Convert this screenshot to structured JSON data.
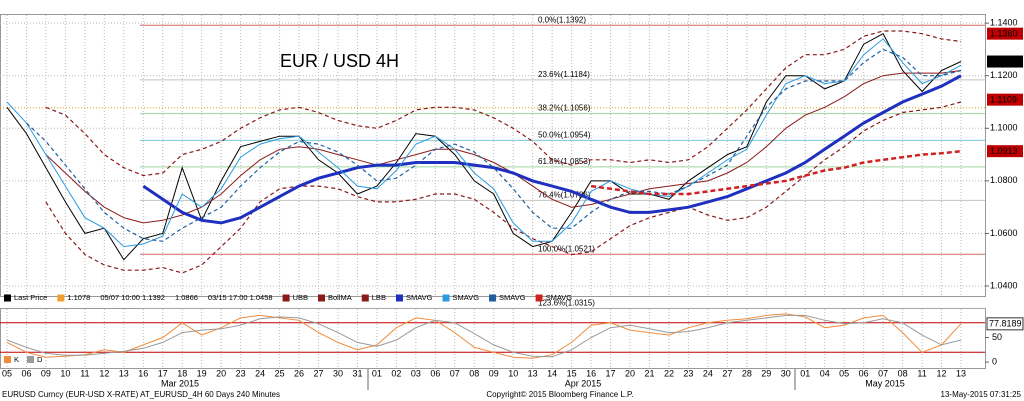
{
  "chart_data": [
    {
      "type": "line",
      "title": "EUR / USD 4H",
      "title_color": "#c00000",
      "categories": [
        "05",
        "06",
        "09",
        "10",
        "11",
        "12",
        "13",
        "16",
        "17",
        "18",
        "19",
        "20",
        "23",
        "24",
        "25",
        "26",
        "27",
        "30",
        "31",
        "01",
        "02",
        "03",
        "06",
        "07",
        "08",
        "09",
        "10",
        "13",
        "14",
        "15",
        "16",
        "17",
        "20",
        "21",
        "22",
        "23",
        "24",
        "27",
        "28",
        "29",
        "30",
        "01",
        "04",
        "05",
        "06",
        "07",
        "08",
        "11",
        "12",
        "13"
      ],
      "month_labels": [
        "Mar 2015",
        "Apr 2015",
        "May 2015"
      ],
      "ylim": [
        1.0362,
        1.1431
      ],
      "yticks": [
        {
          "value": 1.04,
          "label": "1.0400"
        },
        {
          "value": 1.06,
          "label": "1.0600"
        },
        {
          "value": 1.08,
          "label": "1.0800"
        },
        {
          "value": 1.1,
          "label": "1.1000"
        },
        {
          "value": 1.12,
          "label": "1.1200"
        },
        {
          "value": 1.14,
          "label": "1.1400"
        }
      ],
      "grid": true,
      "reference_line": 1.1078,
      "legend_info": [
        "1.1078",
        "05/07 10:00 1.1392",
        "1.0866",
        "03/15 17:00 1.0458"
      ],
      "series": [
        {
          "name": "Last Price",
          "color": "#000000",
          "style": "solid",
          "values": [
            1.108,
            1.098,
            1.085,
            1.072,
            1.06,
            1.062,
            1.05,
            1.058,
            1.06,
            1.085,
            1.065,
            1.08,
            1.093,
            1.095,
            1.097,
            1.097,
            1.088,
            1.083,
            1.075,
            1.078,
            1.087,
            1.098,
            1.097,
            1.09,
            1.08,
            1.075,
            1.06,
            1.055,
            1.057,
            1.068,
            1.08,
            1.08,
            1.075,
            1.075,
            1.073,
            1.08,
            1.085,
            1.09,
            1.093,
            1.11,
            1.12,
            1.12,
            1.115,
            1.118,
            1.132,
            1.136,
            1.122,
            1.114,
            1.122,
            1.1254
          ]
        },
        {
          "name": "UBB",
          "color": "#8b1a1a",
          "style": "dashed",
          "values": [
            null,
            null,
            1.108,
            1.105,
            1.098,
            1.09,
            1.085,
            1.082,
            1.083,
            1.09,
            1.092,
            1.095,
            1.1,
            1.104,
            1.107,
            1.108,
            1.106,
            1.103,
            1.101,
            1.1,
            1.103,
            1.107,
            1.108,
            1.108,
            1.107,
            1.104,
            1.1,
            1.095,
            1.088,
            1.086,
            1.088,
            1.088,
            1.087,
            1.088,
            1.087,
            1.088,
            1.093,
            1.1,
            1.107,
            1.115,
            1.123,
            1.128,
            1.128,
            1.13,
            1.135,
            1.137,
            1.137,
            1.136,
            1.134,
            1.133
          ]
        },
        {
          "name": "BollMA",
          "color": "#8b1a1a",
          "style": "solid",
          "values": [
            null,
            null,
            1.09,
            1.083,
            1.076,
            1.07,
            1.066,
            1.064,
            1.065,
            1.067,
            1.07,
            1.075,
            1.082,
            1.088,
            1.092,
            1.093,
            1.092,
            1.09,
            1.088,
            1.086,
            1.088,
            1.09,
            1.092,
            1.092,
            1.09,
            1.087,
            1.083,
            1.078,
            1.073,
            1.07,
            1.071,
            1.073,
            1.075,
            1.077,
            1.078,
            1.079,
            1.08,
            1.083,
            1.087,
            1.093,
            1.1,
            1.105,
            1.108,
            1.112,
            1.117,
            1.12,
            1.121,
            1.121,
            1.121,
            1.122
          ]
        },
        {
          "name": "LBB",
          "color": "#8b1a1a",
          "style": "dashed",
          "values": [
            null,
            null,
            1.072,
            1.06,
            1.052,
            1.048,
            1.046,
            1.046,
            1.047,
            1.045,
            1.048,
            1.055,
            1.062,
            1.072,
            1.077,
            1.078,
            1.078,
            1.077,
            1.074,
            1.072,
            1.072,
            1.073,
            1.075,
            1.075,
            1.073,
            1.068,
            1.062,
            1.058,
            1.055,
            1.052,
            1.053,
            1.058,
            1.063,
            1.066,
            1.068,
            1.07,
            1.067,
            1.065,
            1.066,
            1.07,
            1.076,
            1.082,
            1.088,
            1.093,
            1.099,
            1.103,
            1.106,
            1.107,
            1.108,
            1.11
          ]
        },
        {
          "name": "SMAVG",
          "color": "#1f2fbf",
          "style": "bold",
          "values": [
            null,
            null,
            null,
            null,
            null,
            null,
            null,
            1.078,
            1.073,
            1.068,
            1.065,
            1.064,
            1.066,
            1.07,
            1.074,
            1.078,
            1.081,
            1.083,
            1.085,
            1.086,
            1.086,
            1.087,
            1.087,
            1.087,
            1.086,
            1.085,
            1.083,
            1.08,
            1.078,
            1.076,
            1.073,
            1.07,
            1.068,
            1.068,
            1.069,
            1.07,
            1.072,
            1.074,
            1.077,
            1.08,
            1.083,
            1.087,
            1.092,
            1.097,
            1.102,
            1.106,
            1.11,
            1.113,
            1.116,
            1.12
          ]
        },
        {
          "name": "SMAVG",
          "color": "#2b9be0",
          "style": "solid",
          "values": [
            1.11,
            1.102,
            1.09,
            1.078,
            1.066,
            1.062,
            1.055,
            1.056,
            1.059,
            1.075,
            1.07,
            1.077,
            1.089,
            1.094,
            1.096,
            1.097,
            1.091,
            1.085,
            1.078,
            1.077,
            1.084,
            1.094,
            1.097,
            1.092,
            1.083,
            1.077,
            1.064,
            1.057,
            1.057,
            1.064,
            1.076,
            1.08,
            1.077,
            1.075,
            1.074,
            1.078,
            1.083,
            1.088,
            1.092,
            1.105,
            1.117,
            1.12,
            1.117,
            1.118,
            1.128,
            1.134,
            1.125,
            1.117,
            1.12,
            1.124
          ]
        },
        {
          "name": "SMAVG",
          "color": "#1f5fa0",
          "style": "dashed",
          "values": [
            null,
            1.102,
            1.095,
            1.086,
            1.077,
            1.068,
            1.062,
            1.058,
            1.057,
            1.062,
            1.066,
            1.07,
            1.078,
            1.085,
            1.091,
            1.095,
            1.094,
            1.091,
            1.086,
            1.08,
            1.081,
            1.086,
            1.092,
            1.094,
            1.091,
            1.085,
            1.077,
            1.068,
            1.062,
            1.062,
            1.068,
            1.073,
            1.076,
            1.076,
            1.075,
            1.078,
            1.082,
            1.086,
            1.097,
            1.108,
            1.115,
            1.118,
            1.118,
            1.118,
            1.125,
            1.13,
            1.127,
            1.12,
            1.12,
            1.122
          ]
        },
        {
          "name": "SMAVG",
          "color": "#d02020",
          "style": "bold-dashed",
          "values": [
            null,
            null,
            null,
            null,
            null,
            null,
            null,
            null,
            null,
            null,
            null,
            null,
            null,
            null,
            null,
            null,
            null,
            null,
            null,
            null,
            null,
            null,
            null,
            null,
            null,
            null,
            null,
            null,
            null,
            null,
            1.078,
            1.077,
            1.076,
            1.075,
            1.075,
            1.075,
            1.076,
            1.077,
            1.078,
            1.079,
            1.08,
            1.082,
            1.084,
            1.085,
            1.087,
            1.088,
            1.089,
            1.09,
            1.0905,
            1.0913
          ]
        }
      ],
      "price_tags": [
        {
          "value": 1.136,
          "label": "1.1360",
          "color": "#c00000"
        },
        {
          "value": 1.1254,
          "label": "1.1254",
          "color": "#000000"
        },
        {
          "value": 1.1109,
          "label": "1.1109",
          "color": "#c00000"
        },
        {
          "value": 1.0913,
          "label": "1.0913",
          "color": "#c00000"
        }
      ],
      "fib_levels": [
        {
          "value": 1.1392,
          "label": "0.0%(1.1392)",
          "color": "#c00000"
        },
        {
          "value": 1.1184,
          "label": "23.6%(1.1184)",
          "color": "#999999"
        },
        {
          "value": 1.1056,
          "label": "38.2%(1.1056)",
          "color": "#5cb85c"
        },
        {
          "value": 1.0954,
          "label": "50.0%(1.0954)",
          "color": "#20a0c0"
        },
        {
          "value": 1.0853,
          "label": "61.8%(1.0853)",
          "color": "#5cb85c"
        },
        {
          "value": 1.0726,
          "label": "76.4%(1.0726)",
          "color": "#999999"
        },
        {
          "value": 1.0521,
          "label": "100.0%(1.0521)",
          "color": "#c00000"
        },
        {
          "value": 1.0315,
          "label": "123.6%(1.0315)",
          "color": "#bbbbbb"
        }
      ]
    },
    {
      "type": "line",
      "ylim": [
        -12,
        108
      ],
      "yticks": [
        0,
        50
      ],
      "levels": [
        20,
        80
      ],
      "level_color": "#c00000",
      "tag": {
        "value": 77.8189,
        "label": "77.8189"
      },
      "series": [
        {
          "name": "K",
          "color": "#f08c3c",
          "style": "solid",
          "values": [
            40,
            20,
            10,
            12,
            15,
            25,
            20,
            35,
            50,
            80,
            55,
            70,
            90,
            95,
            90,
            85,
            60,
            40,
            25,
            35,
            70,
            90,
            85,
            60,
            30,
            20,
            10,
            8,
            15,
            40,
            75,
            80,
            65,
            60,
            55,
            70,
            80,
            85,
            88,
            95,
            98,
            92,
            70,
            75,
            90,
            95,
            60,
            20,
            35,
            77.8189
          ]
        },
        {
          "name": "D",
          "color": "#9a9a9a",
          "style": "solid",
          "values": [
            45,
            30,
            18,
            14,
            14,
            18,
            22,
            28,
            40,
            60,
            65,
            68,
            75,
            88,
            92,
            90,
            78,
            60,
            40,
            32,
            45,
            70,
            85,
            80,
            58,
            35,
            20,
            12,
            11,
            25,
            50,
            70,
            75,
            68,
            60,
            62,
            70,
            80,
            85,
            90,
            95,
            95,
            85,
            78,
            80,
            88,
            80,
            55,
            35,
            45
          ]
        }
      ]
    }
  ],
  "footer": {
    "left": "EURUSD Curncy (EUR-USD X-RATE) AT_EURUSD_4H 60 Days 240 Minutes",
    "center": "Copyright© 2015 Bloomberg Finance L.P.",
    "right": "13-May-2015 07:31:25"
  }
}
